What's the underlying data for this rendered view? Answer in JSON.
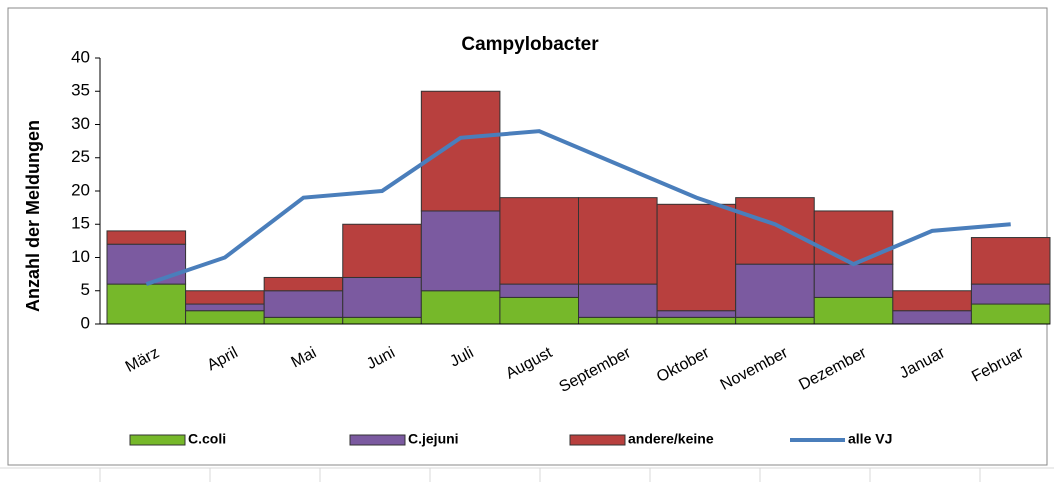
{
  "chart_data": {
    "type": "stacked-bar-line",
    "title": "Campylobacter",
    "y_label": "Anzahl der Meldungen",
    "categories": [
      "März",
      "April",
      "Mai",
      "Juni",
      "Juli",
      "August",
      "September",
      "Oktober",
      "November",
      "Dezember",
      "Januar",
      "Februar"
    ],
    "series": [
      {
        "name": "C.coli",
        "color": "#76b82a",
        "values": [
          6,
          2,
          1,
          1,
          5,
          4,
          1,
          1,
          1,
          4,
          0,
          3
        ]
      },
      {
        "name": "C.jejuni",
        "color": "#7b5aa0",
        "values": [
          6,
          1,
          4,
          6,
          12,
          2,
          5,
          1,
          8,
          5,
          2,
          3
        ]
      },
      {
        "name": "andere/keine",
        "color": "#b8403e",
        "values": [
          2,
          2,
          2,
          8,
          18,
          13,
          13,
          16,
          10,
          8,
          3,
          7
        ]
      },
      {
        "name": "alle VJ",
        "color": "#4a7ebb",
        "type": "line",
        "values": [
          6,
          10,
          19,
          20,
          28,
          29,
          24,
          19,
          15,
          9,
          14,
          15
        ]
      }
    ],
    "ylim": [
      0,
      40
    ],
    "yticks": [
      0,
      5,
      10,
      15,
      20,
      25,
      30,
      35,
      40
    ]
  }
}
